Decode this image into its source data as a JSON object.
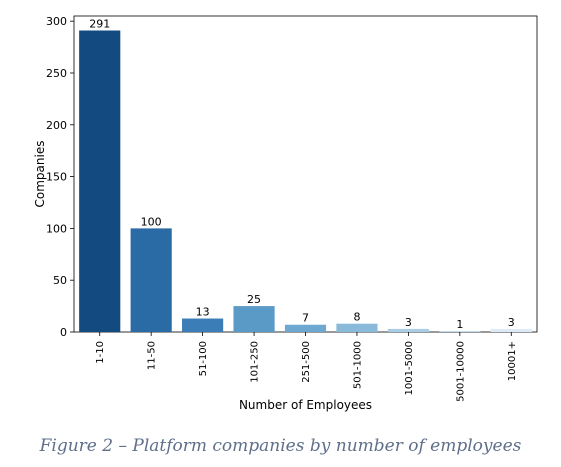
{
  "caption": "Figure 2 – Platform companies by number of employees",
  "chart_data": {
    "type": "bar",
    "categories": [
      "1-10",
      "11-50",
      "51-100",
      "101-250",
      "251-500",
      "501-1000",
      "1001-5000",
      "5001-10000",
      "10001+"
    ],
    "values": [
      291,
      100,
      13,
      25,
      7,
      8,
      3,
      1,
      3
    ],
    "data_labels": [
      "291",
      "100",
      "13",
      "25",
      "7",
      "8",
      "3",
      "1",
      "3"
    ],
    "xlabel": "Number of Employees",
    "ylabel": "Companies",
    "ylim": [
      0,
      305
    ],
    "yticks": [
      0,
      50,
      100,
      150,
      200,
      250,
      300
    ],
    "grid": false,
    "legend": "none",
    "colors": [
      "#134a80",
      "#2a6aa5",
      "#3b7db6",
      "#5a9ac6",
      "#6ea8d0",
      "#89bad9",
      "#a8cde4",
      "#c5dcee",
      "#deebf7"
    ]
  }
}
